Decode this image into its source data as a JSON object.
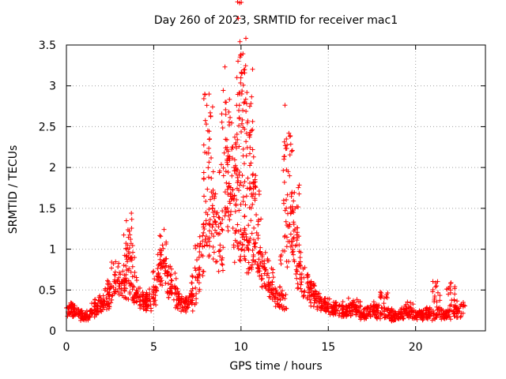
{
  "chart_data": {
    "type": "scatter",
    "title": "Day 260 of 2023, SRMTID for receiver mac1",
    "xlabel": "GPS time / hours",
    "ylabel": "SRMTID / TECUs",
    "xlim": [
      0,
      24
    ],
    "ylim": [
      0,
      3.5
    ],
    "xticks": [
      0,
      5,
      10,
      15,
      20
    ],
    "yticks": [
      0,
      0.5,
      1,
      1.5,
      2,
      2.5,
      3,
      3.5
    ],
    "xtick_labels": [
      "0",
      "5",
      "10",
      "15",
      "20"
    ],
    "ytick_labels": [
      "0",
      "0.5",
      "1",
      "1.5",
      "2",
      "2.5",
      "3",
      "3.5"
    ],
    "grid": true,
    "marker": "+",
    "color": "#ff0000",
    "series": [
      {
        "name": "mac1",
        "x": [
          0.0,
          0.2,
          0.4,
          0.6,
          0.8,
          1.0,
          1.2,
          1.4,
          1.6,
          1.8,
          2.0,
          2.2,
          2.4,
          2.6,
          2.8,
          3.0,
          3.2,
          3.4,
          3.5,
          3.6,
          3.7,
          3.8,
          4.0,
          4.2,
          4.4,
          4.6,
          4.8,
          5.0,
          5.2,
          5.4,
          5.5,
          5.6,
          5.8,
          6.0,
          6.2,
          6.4,
          6.6,
          6.8,
          7.0,
          7.2,
          7.4,
          7.6,
          7.8,
          8.0,
          8.1,
          8.2,
          8.3,
          8.4,
          8.6,
          8.8,
          9.0,
          9.1,
          9.2,
          9.4,
          9.5,
          9.6,
          9.7,
          9.8,
          9.9,
          10.0,
          10.05,
          10.1,
          10.2,
          10.3,
          10.4,
          10.5,
          10.6,
          10.7,
          10.8,
          10.9,
          11.0,
          11.2,
          11.4,
          11.6,
          11.8,
          12.0,
          12.2,
          12.4,
          12.5,
          12.6,
          12.7,
          12.8,
          13.0,
          13.1,
          13.2,
          13.4,
          13.6,
          13.8,
          14.0,
          14.2,
          14.4,
          14.6,
          14.8,
          15.0,
          15.2,
          15.4,
          15.6,
          15.8,
          16.0,
          16.2,
          16.4,
          16.6,
          16.8,
          17.0,
          17.2,
          17.4,
          17.6,
          17.8,
          18.0,
          18.2,
          18.4,
          18.6,
          18.8,
          19.0,
          19.2,
          19.4,
          19.6,
          19.8,
          20.0,
          20.2,
          20.4,
          20.6,
          20.8,
          21.0,
          21.2,
          21.4,
          21.6,
          21.8,
          22.0,
          22.2,
          22.4,
          22.6
        ],
        "y": [
          0.28,
          0.3,
          0.26,
          0.27,
          0.22,
          0.18,
          0.2,
          0.25,
          0.3,
          0.33,
          0.38,
          0.36,
          0.45,
          0.55,
          0.72,
          0.65,
          0.6,
          0.52,
          1.05,
          1.22,
          0.9,
          0.55,
          0.45,
          0.42,
          0.38,
          0.4,
          0.36,
          0.45,
          0.62,
          0.8,
          1.05,
          0.85,
          0.68,
          0.62,
          0.55,
          0.42,
          0.38,
          0.35,
          0.36,
          0.45,
          0.65,
          0.9,
          1.1,
          1.35,
          2.45,
          2.35,
          1.7,
          1.45,
          1.2,
          1.05,
          1.9,
          2.8,
          2.1,
          1.65,
          2.25,
          2.0,
          1.55,
          1.3,
          2.6,
          3.38,
          3.15,
          2.7,
          1.4,
          1.15,
          1.05,
          2.75,
          2.45,
          1.8,
          1.6,
          1.2,
          0.95,
          0.85,
          0.75,
          0.65,
          0.6,
          0.5,
          0.45,
          0.4,
          1.15,
          2.35,
          1.95,
          1.3,
          1.45,
          1.5,
          1.05,
          0.8,
          0.65,
          0.58,
          0.5,
          0.42,
          0.4,
          0.38,
          0.35,
          0.33,
          0.3,
          0.28,
          0.3,
          0.26,
          0.27,
          0.28,
          0.35,
          0.3,
          0.25,
          0.22,
          0.24,
          0.26,
          0.3,
          0.28,
          0.22,
          0.4,
          0.25,
          0.22,
          0.18,
          0.2,
          0.22,
          0.25,
          0.3,
          0.24,
          0.22,
          0.2,
          0.22,
          0.25,
          0.2,
          0.22,
          0.55,
          0.25,
          0.2,
          0.22,
          0.5,
          0.3,
          0.25,
          0.32
        ]
      }
    ]
  }
}
